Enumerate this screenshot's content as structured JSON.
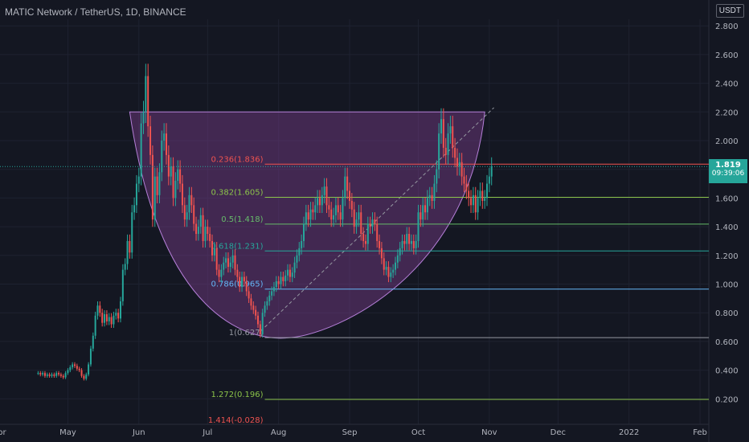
{
  "header": {
    "title": "MATIC Network / TetherUS, 1D, BINANCE",
    "currency": "USDT"
  },
  "last_price": {
    "value": "1.819",
    "countdown": "09:39:06",
    "color": "#26a69a"
  },
  "colors": {
    "background": "#141722",
    "up": "#26a69a",
    "down": "#ef5350",
    "cup_fill": "#7b3f8c",
    "cup_stroke": "#b57fd8"
  },
  "chart_data": {
    "type": "candlestick",
    "title": "MATIC Network / TetherUS, 1D, BINANCE",
    "ylim": [
      0,
      2.9
    ],
    "y_ticks": [
      "2.800",
      "2.600",
      "2.400",
      "2.200",
      "2.000",
      "1.800",
      "1.600",
      "1.400",
      "1.200",
      "1.000",
      "0.800",
      "0.600",
      "0.400",
      "0.200"
    ],
    "y_tick_values": [
      2.8,
      2.6,
      2.4,
      2.2,
      2.0,
      1.8,
      1.6,
      1.4,
      1.2,
      1.0,
      0.8,
      0.6,
      0.4,
      0.2
    ],
    "x_ticks": [
      "Apr",
      "May",
      "Jun",
      "Jul",
      "Aug",
      "Sep",
      "Oct",
      "Nov",
      "Dec",
      "2022",
      "Feb"
    ],
    "x_tick_index": [
      -17,
      13,
      44,
      74,
      105,
      136,
      166,
      197,
      227,
      258,
      289
    ],
    "candles_start": "2021-04-18",
    "close": [
      0.38,
      0.37,
      0.38,
      0.36,
      0.37,
      0.36,
      0.37,
      0.36,
      0.38,
      0.37,
      0.36,
      0.35,
      0.38,
      0.4,
      0.42,
      0.44,
      0.43,
      0.41,
      0.4,
      0.36,
      0.34,
      0.37,
      0.44,
      0.55,
      0.64,
      0.78,
      0.85,
      0.8,
      0.73,
      0.79,
      0.74,
      0.77,
      0.72,
      0.78,
      0.8,
      0.76,
      0.88,
      1.1,
      1.14,
      1.3,
      1.22,
      1.5,
      1.55,
      1.7,
      1.75,
      2.12,
      2.2,
      2.45,
      2.1,
      1.9,
      1.45,
      1.75,
      1.62,
      1.78,
      2.0,
      2.05,
      1.9,
      1.75,
      1.82,
      1.6,
      1.72,
      1.8,
      1.7,
      1.55,
      1.45,
      1.5,
      1.62,
      1.55,
      1.42,
      1.35,
      1.4,
      1.48,
      1.3,
      1.4,
      1.35,
      1.3,
      1.2,
      1.25,
      1.1,
      1.05,
      1.1,
      1.15,
      1.18,
      1.12,
      1.15,
      1.2,
      1.1,
      1.05,
      0.98,
      1.05,
      1.02,
      0.95,
      0.9,
      0.85,
      0.82,
      0.78,
      0.72,
      0.65,
      0.8,
      0.85,
      0.88,
      0.92,
      0.95,
      0.98,
      1.02,
      1.0,
      1.05,
      1.02,
      1.06,
      1.1,
      1.05,
      1.08,
      1.15,
      1.2,
      1.25,
      1.3,
      1.42,
      1.5,
      1.45,
      1.52,
      1.5,
      1.55,
      1.6,
      1.55,
      1.62,
      1.68,
      1.55,
      1.52,
      1.45,
      1.48,
      1.55,
      1.5,
      1.45,
      1.6,
      1.75,
      1.65,
      1.58,
      1.52,
      1.4,
      1.45,
      1.5,
      1.35,
      1.3,
      1.28,
      1.42,
      1.4,
      1.45,
      1.42,
      1.3,
      1.25,
      1.18,
      1.1,
      1.12,
      1.05,
      1.08,
      1.1,
      1.15,
      1.2,
      1.25,
      1.3,
      1.28,
      1.35,
      1.28,
      1.3,
      1.25,
      1.3,
      1.5,
      1.45,
      1.55,
      1.5,
      1.6,
      1.62,
      1.58,
      1.7,
      1.8,
      2.05,
      2.15,
      1.95,
      1.9,
      2.05,
      2.1,
      1.95,
      1.88,
      1.82,
      1.85,
      1.75,
      1.7,
      1.65,
      1.6,
      1.55,
      1.62,
      1.5,
      1.6,
      1.65,
      1.58,
      1.6,
      1.7,
      1.75,
      1.82
    ],
    "fib_levels": [
      {
        "label": "0.236(1.836)",
        "value": 1.836,
        "color": "#ef5350"
      },
      {
        "label": "0.382(1.605)",
        "value": 1.605,
        "color": "#8bc34a"
      },
      {
        "label": "0.5(1.418)",
        "value": 1.418,
        "color": "#66bb6a"
      },
      {
        "label": "0.618(1.231)",
        "value": 1.231,
        "color": "#26a69a"
      },
      {
        "label": "0.786(0.965)",
        "value": 0.965,
        "color": "#64b5f6"
      },
      {
        "label": "1(0.627)",
        "value": 0.627,
        "color": "#9598a1"
      },
      {
        "label": "1.272(0.196)",
        "value": 0.196,
        "color": "#8bc34a"
      },
      {
        "label": "1.414(-0.028)",
        "value": -0.028,
        "color": "#ef5350"
      }
    ],
    "cup_pattern": {
      "top": 2.2,
      "bottom": 0.627
    }
  }
}
